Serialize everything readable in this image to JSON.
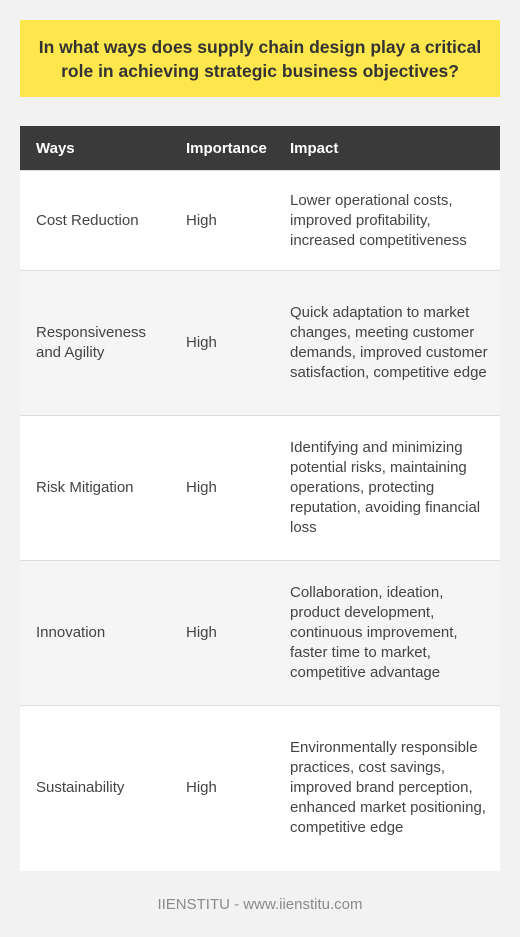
{
  "title": "In what ways does supply chain design play a critical role in achieving strategic business objectives?",
  "table": {
    "headers": [
      "Ways",
      "Importance",
      "Impact"
    ],
    "rows": [
      {
        "way": "Cost Reduction",
        "importance": "High",
        "impact": "Lower operational costs, improved profitability, increased competitiveness"
      },
      {
        "way": "Responsiveness and Agility",
        "importance": "High",
        "impact": "Quick adaptation to market changes, meeting customer demands, improved customer satisfaction, competitive edge"
      },
      {
        "way": "Risk Mitigation",
        "importance": "High",
        "impact": "Identifying and minimizing potential risks, maintaining operations, protecting reputation, avoiding financial loss"
      },
      {
        "way": "Innovation",
        "importance": "High",
        "impact": "Collaboration, ideation, product development, continuous improvement, faster time to market, competitive advantage"
      },
      {
        "way": "Sustainability",
        "importance": "High",
        "impact": "Environmentally responsible practices, cost savings, improved brand perception, enhanced market positioning, competitive edge"
      }
    ]
  },
  "footer": "IIENSTITU - www.iienstitu.com",
  "colors": {
    "title_background": "#fde74c",
    "header_background": "#3a3a3a",
    "page_background": "#f2f2f2"
  }
}
